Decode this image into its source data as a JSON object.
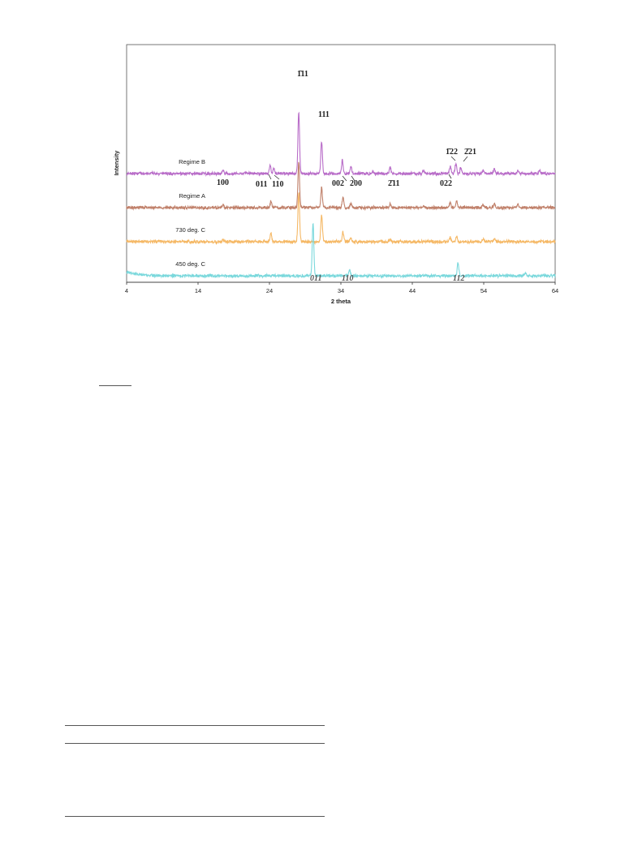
{
  "chart_data": {
    "type": "line",
    "xlabel": "2 theta",
    "ylabel": "Intensity",
    "xlim": [
      4,
      64
    ],
    "xticks": [
      4,
      14,
      24,
      34,
      44,
      54,
      64
    ],
    "grid": false,
    "legend": "inline labels left of each trace",
    "series": [
      {
        "name": "Regime B",
        "color": "#b86cc8",
        "baseline": 1.0,
        "peaks": [
          [
            17.5,
            0.1
          ],
          [
            24.1,
            0.22
          ],
          [
            24.6,
            0.14
          ],
          [
            28.1,
            1.8
          ],
          [
            31.3,
            0.95
          ],
          [
            34.2,
            0.38
          ],
          [
            35.4,
            0.2
          ],
          [
            38.5,
            0.06
          ],
          [
            40.9,
            0.18
          ],
          [
            45.6,
            0.1
          ],
          [
            49.3,
            0.22
          ],
          [
            50.1,
            0.3
          ],
          [
            50.8,
            0.18
          ],
          [
            53.9,
            0.1
          ],
          [
            55.5,
            0.14
          ],
          [
            58.8,
            0.1
          ],
          [
            61.8,
            0.08
          ]
        ]
      },
      {
        "name": "Regime A",
        "color": "#c0806a",
        "baseline": 0.0,
        "peaks": [
          [
            17.5,
            0.08
          ],
          [
            24.2,
            0.18
          ],
          [
            28.1,
            1.35
          ],
          [
            31.3,
            0.58
          ],
          [
            34.3,
            0.3
          ],
          [
            35.4,
            0.12
          ],
          [
            40.9,
            0.1
          ],
          [
            45.6,
            0.07
          ],
          [
            49.3,
            0.14
          ],
          [
            50.2,
            0.2
          ],
          [
            53.9,
            0.08
          ],
          [
            55.5,
            0.12
          ],
          [
            58.8,
            0.08
          ]
        ]
      },
      {
        "name": "730 deg. C",
        "color": "#f5b865",
        "baseline": -1.0,
        "peaks": [
          [
            17.5,
            0.06
          ],
          [
            24.2,
            0.24
          ],
          [
            28.1,
            1.45
          ],
          [
            31.3,
            0.8
          ],
          [
            34.3,
            0.28
          ],
          [
            35.4,
            0.12
          ],
          [
            40.9,
            0.07
          ],
          [
            49.3,
            0.12
          ],
          [
            50.2,
            0.16
          ],
          [
            53.9,
            0.08
          ],
          [
            55.5,
            0.08
          ]
        ]
      },
      {
        "name": "450 deg. C",
        "color": "#7ad8dc",
        "baseline": -2.0,
        "peaks": [
          [
            30.1,
            1.55
          ],
          [
            35.2,
            0.18
          ],
          [
            50.4,
            0.4
          ],
          [
            59.8,
            0.1
          ]
        ]
      }
    ],
    "annotations": [
      {
        "text": "1̄11",
        "x": 28.1
      },
      {
        "text": "111",
        "x": 31.3
      },
      {
        "text": "100",
        "x": 17.5
      },
      {
        "text": "011",
        "x": 23.6
      },
      {
        "text": "110",
        "x": 25.3
      },
      {
        "text": "002",
        "x": 34.2
      },
      {
        "text": "200",
        "x": 36.2
      },
      {
        "text": "2̄11",
        "x": 40.9
      },
      {
        "text": "022",
        "x": 49.0
      },
      {
        "text": "1̄22",
        "x": 49.5
      },
      {
        "text": "2̄21",
        "x": 51.3
      },
      {
        "text": "011",
        "x": 29.9,
        "series": "450 deg. C"
      },
      {
        "text": "110",
        "x": 34.9,
        "series": "450 deg. C"
      },
      {
        "text": "112",
        "x": 50.4,
        "series": "450 deg. C"
      }
    ]
  }
}
